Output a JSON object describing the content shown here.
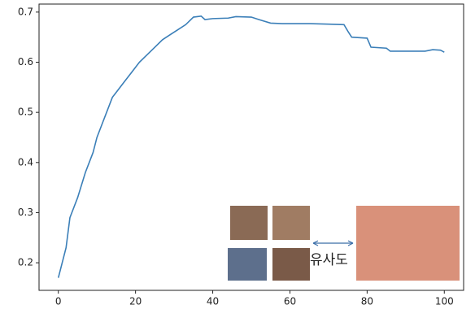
{
  "chart_data": {
    "type": "line",
    "x": [
      0,
      1,
      2,
      3,
      5,
      7,
      9,
      10,
      12,
      14,
      15,
      17,
      19,
      21,
      23,
      25,
      27,
      29,
      31,
      33,
      35,
      37,
      38,
      40,
      44,
      46,
      50,
      52,
      55,
      58,
      60,
      65,
      70,
      74,
      75,
      76,
      80,
      81,
      85,
      86,
      95,
      97,
      99,
      100
    ],
    "series": [
      {
        "color": "#3b7fb8",
        "values": [
          0.17,
          0.2,
          0.23,
          0.29,
          0.33,
          0.38,
          0.42,
          0.45,
          0.49,
          0.53,
          0.54,
          0.56,
          0.58,
          0.6,
          0.615,
          0.63,
          0.645,
          0.655,
          0.665,
          0.675,
          0.69,
          0.692,
          0.685,
          0.687,
          0.688,
          0.691,
          0.69,
          0.685,
          0.678,
          0.677,
          0.677,
          0.677,
          0.676,
          0.675,
          0.662,
          0.65,
          0.648,
          0.63,
          0.628,
          0.622,
          0.622,
          0.625,
          0.624,
          0.62
        ]
      }
    ],
    "xlim": [
      -5,
      105
    ],
    "xticks": [
      0,
      20,
      40,
      60,
      80,
      100
    ],
    "ylim": [
      0.145,
      0.716
    ],
    "yticks": [
      0.2,
      0.3,
      0.4,
      0.5,
      0.6,
      0.7
    ],
    "annotation": "유사도"
  }
}
